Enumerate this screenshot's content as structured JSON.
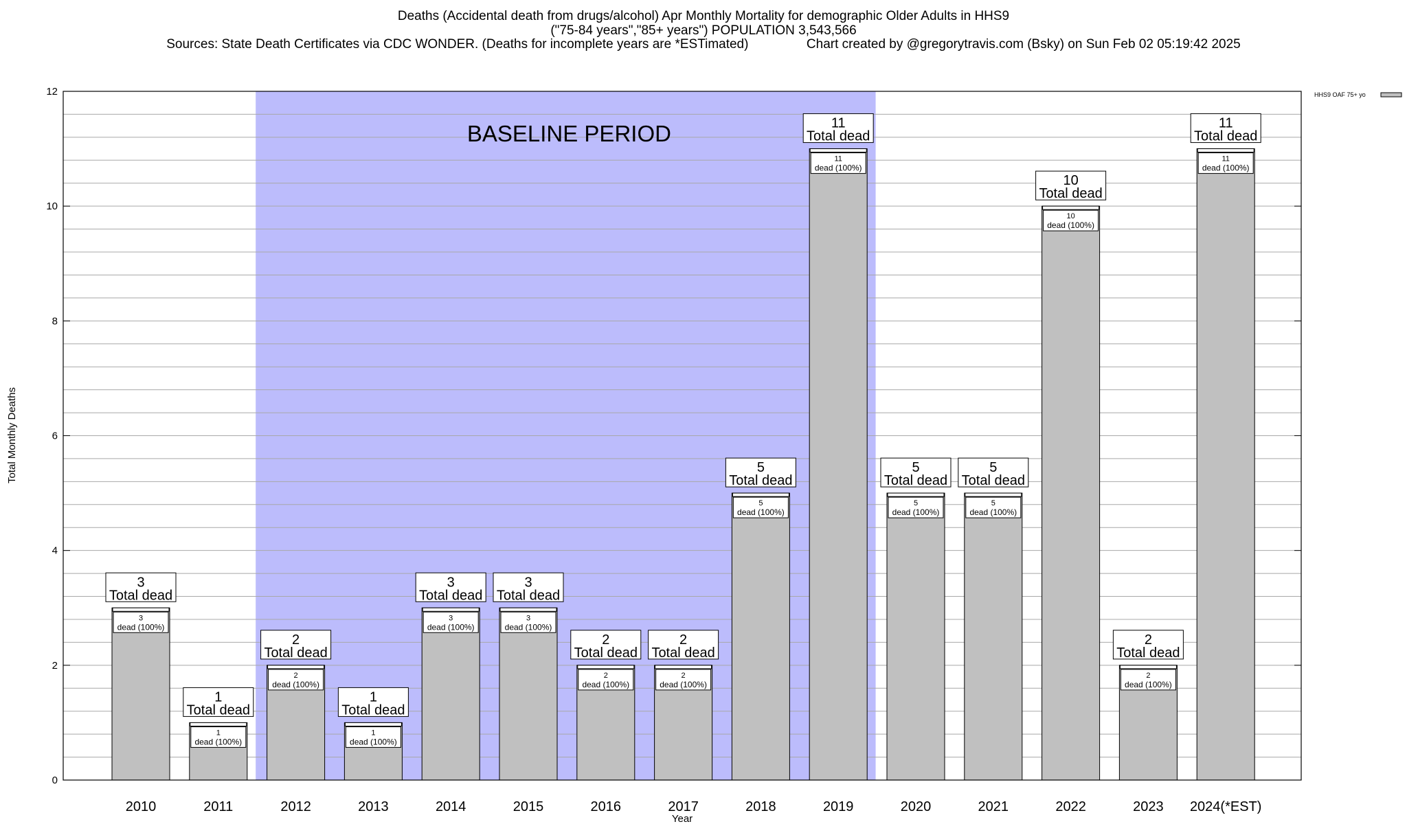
{
  "header": {
    "title_line1": "Deaths (Accidental death from drugs/alcohol) Apr Monthly Mortality for demographic Older Adults in HHS9",
    "title_line2": "(\"75-84 years\",\"85+ years\") POPULATION 3,543,566",
    "title_line3": "Sources: State Death Certificates via CDC WONDER. (Deaths for incomplete years are *ESTimated)                Chart created by @gregorytravis.com (Bsky) on Sun Feb 02 05:19:42 2025"
  },
  "chart_data": {
    "type": "bar",
    "xlabel": "Year",
    "ylabel": "Total Monthly Deaths",
    "ylim": [
      0,
      12
    ],
    "y_ticks": [
      0,
      2,
      4,
      6,
      8,
      10,
      12
    ],
    "grid": true,
    "categories": [
      "2010",
      "2011",
      "2012",
      "2013",
      "2014",
      "2015",
      "2016",
      "2017",
      "2018",
      "2019",
      "2020",
      "2021",
      "2022",
      "2023",
      "2024(*EST)"
    ],
    "series": [
      {
        "name": "HHS9 OAF 75+ yo",
        "values": [
          3,
          1,
          2,
          1,
          3,
          3,
          2,
          2,
          5,
          11,
          5,
          5,
          10,
          2,
          11
        ],
        "color": "#c0c0c0"
      }
    ],
    "total_label_suffix": "Total dead",
    "inner_label_suffix": "dead (100%)",
    "baseline": {
      "label": "BASELINE PERIOD",
      "from_category": "2012",
      "to_category": "2019",
      "color": "#bcbcfc"
    },
    "legend": {
      "placement": "top-right",
      "label": "HHS9 OAF 75+ yo"
    }
  }
}
